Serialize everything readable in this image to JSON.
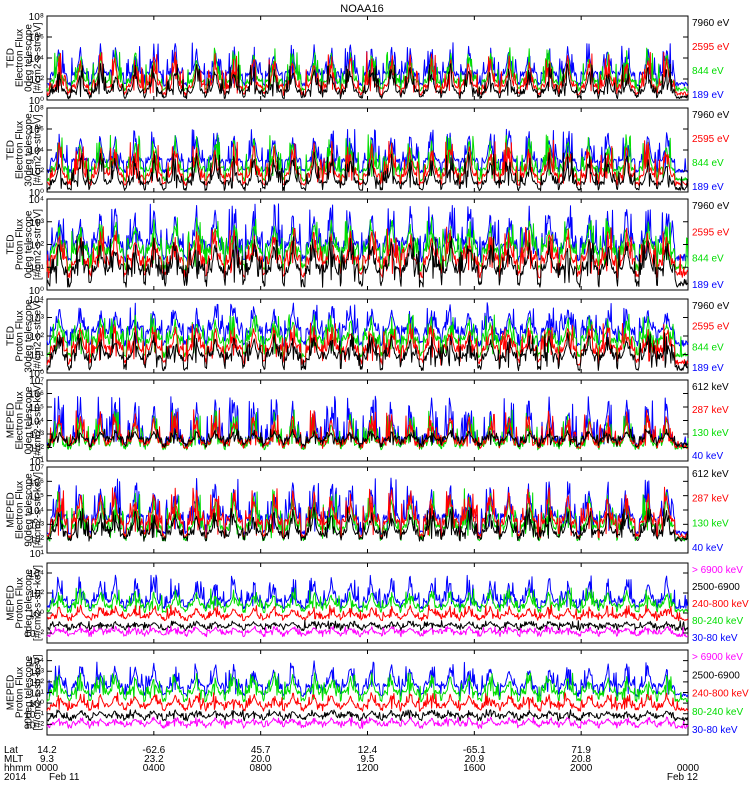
{
  "title": "NOAA16",
  "colors": {
    "blue": "#0000ff",
    "red": "#ff0000",
    "green": "#00dd00",
    "black": "#000000",
    "magenta": "#ff00ff"
  },
  "chart_data": [
    {
      "type": "line",
      "panel": 1,
      "ylabel": [
        "TED",
        "Electron Flux",
        "0deg telescope",
        "[#/cm2-s-str-eV]"
      ],
      "ylim_exp": [
        0,
        8
      ],
      "ytick_exps": [
        0,
        2,
        4,
        6,
        8
      ],
      "legend": [
        {
          "label": "7960 eV",
          "color": "black"
        },
        {
          "label": "2595 eV",
          "color": "red"
        },
        {
          "label": "844 eV",
          "color": "green"
        },
        {
          "label": "189 eV",
          "color": "blue"
        }
      ],
      "series_levels_exp": {
        "blue": {
          "base": 1.5,
          "plateau": 2.5,
          "peak": 5.5
        },
        "green": {
          "base": 1.0,
          "plateau": 1.8,
          "peak": 5.0
        },
        "red": {
          "base": 0.6,
          "plateau": 1.3,
          "peak": 4.6
        },
        "black": {
          "base": 0.3,
          "plateau": 0.8,
          "peak": 3.5
        }
      }
    },
    {
      "type": "line",
      "panel": 2,
      "ylabel": [
        "TED",
        "Electron Flux",
        "30deg telescope",
        "[#/cm2-s-str-eV]"
      ],
      "ylim_exp": [
        0,
        8
      ],
      "ytick_exps": [
        0,
        2,
        4,
        6,
        8
      ],
      "legend": [
        {
          "label": "7960 eV",
          "color": "black"
        },
        {
          "label": "2595 eV",
          "color": "red"
        },
        {
          "label": "844 eV",
          "color": "green"
        },
        {
          "label": "189 eV",
          "color": "blue"
        }
      ],
      "series_levels_exp": {
        "blue": {
          "base": 2.0,
          "plateau": 3.0,
          "peak": 6.0
        },
        "green": {
          "base": 1.2,
          "plateau": 2.2,
          "peak": 5.5
        },
        "red": {
          "base": 0.8,
          "plateau": 1.6,
          "peak": 5.0
        },
        "black": {
          "base": 0.3,
          "plateau": 0.9,
          "peak": 3.8
        }
      }
    },
    {
      "type": "line",
      "panel": 3,
      "ylabel": [
        "TED",
        "Proton Flux",
        "0deg telescope",
        "[#/cm2-s-str-eV]"
      ],
      "ylim_exp": [
        0,
        4
      ],
      "ytick_exps": [
        0,
        1,
        2,
        3,
        4
      ],
      "legend": [
        {
          "label": "7960 eV",
          "color": "black"
        },
        {
          "label": "2595 eV",
          "color": "red"
        },
        {
          "label": "844 eV",
          "color": "green"
        },
        {
          "label": "189 eV",
          "color": "blue"
        }
      ],
      "series_levels_exp": {
        "blue": {
          "base": 1.4,
          "plateau": 2.0,
          "peak": 3.8
        },
        "green": {
          "base": 1.0,
          "plateau": 1.8,
          "peak": 3.2
        },
        "red": {
          "base": 0.7,
          "plateau": 1.3,
          "peak": 2.8
        },
        "black": {
          "base": 0.3,
          "plateau": 0.9,
          "peak": 2.4
        }
      }
    },
    {
      "type": "line",
      "panel": 4,
      "ylabel": [
        "TED",
        "Proton Flux",
        "30deg telescope",
        "[#/cm2-s-str-eV]"
      ],
      "ylim_exp": [
        0,
        4
      ],
      "ytick_exps": [
        0,
        1,
        2,
        3,
        4
      ],
      "legend": [
        {
          "label": "7960 eV",
          "color": "black"
        },
        {
          "label": "2595 eV",
          "color": "red"
        },
        {
          "label": "844 eV",
          "color": "green"
        },
        {
          "label": "189 eV",
          "color": "blue"
        }
      ],
      "series_levels_exp": {
        "blue": {
          "base": 1.6,
          "plateau": 2.3,
          "peak": 3.8
        },
        "green": {
          "base": 1.0,
          "plateau": 1.8,
          "peak": 3.2
        },
        "red": {
          "base": 0.6,
          "plateau": 1.3,
          "peak": 2.7
        },
        "black": {
          "base": 0.3,
          "plateau": 0.9,
          "peak": 2.2
        }
      }
    },
    {
      "type": "line",
      "panel": 5,
      "ylabel": [
        "MEPED",
        "Electron Flux",
        "0deg telescope",
        "[#/cm2-s-str-keV]"
      ],
      "ylim_exp": [
        1,
        7
      ],
      "ytick_exps": [
        1,
        2,
        3,
        4,
        5,
        6,
        7
      ],
      "legend": [
        {
          "label": "612 keV",
          "color": "black"
        },
        {
          "label": "287 keV",
          "color": "red"
        },
        {
          "label": "130 keV",
          "color": "green"
        },
        {
          "label": "40 keV",
          "color": "blue"
        }
      ],
      "series_levels_exp": {
        "blue": {
          "base": 2.2,
          "plateau": 2.6,
          "peak": 5.8
        },
        "green": {
          "base": 2.0,
          "plateau": 2.3,
          "peak": 4.8
        },
        "red": {
          "base": 2.1,
          "plateau": 2.4,
          "peak": 4.8
        },
        "black": {
          "base": 2.2,
          "plateau": 2.6,
          "peak": 3.4
        }
      }
    },
    {
      "type": "line",
      "panel": 6,
      "ylabel": [
        "MEPED",
        "Electron Flux",
        "90deg telescope",
        "[#/cm2-s-str-keV]"
      ],
      "ylim_exp": [
        1,
        7
      ],
      "ytick_exps": [
        1,
        2,
        3,
        4,
        5,
        6,
        7
      ],
      "legend": [
        {
          "label": "612 keV",
          "color": "black"
        },
        {
          "label": "287 keV",
          "color": "red"
        },
        {
          "label": "130 keV",
          "color": "green"
        },
        {
          "label": "40 keV",
          "color": "blue"
        }
      ],
      "series_levels_exp": {
        "blue": {
          "base": 2.4,
          "plateau": 3.5,
          "peak": 6.3
        },
        "green": {
          "base": 2.0,
          "plateau": 2.8,
          "peak": 5.5
        },
        "red": {
          "base": 2.2,
          "plateau": 3.2,
          "peak": 5.6
        },
        "black": {
          "base": 2.0,
          "plateau": 2.4,
          "peak": 4.2
        }
      }
    },
    {
      "type": "line",
      "panel": 7,
      "ylabel": [
        "MEPED",
        "Proton Flux",
        "0deg telescope",
        "[#/cm2-s-str-keV]"
      ],
      "ylim_exp": [
        -3,
        5
      ],
      "ytick_exps": [
        -2,
        0,
        2,
        4
      ],
      "legend": [
        {
          "label": "> 6900 keV",
          "color": "magenta"
        },
        {
          "label": "2500-6900",
          "color": "black"
        },
        {
          "label": "240-800 keV",
          "color": "red"
        },
        {
          "label": "80-240 keV",
          "color": "green"
        },
        {
          "label": "30-80 keV",
          "color": "blue"
        }
      ],
      "series_levels_exp": {
        "blue": {
          "base": 0.6,
          "plateau": 1.2,
          "peak": 3.8
        },
        "green": {
          "base": 0.2,
          "plateau": 0.7,
          "peak": 2.5
        },
        "red": {
          "base": -0.6,
          "plateau": -0.3,
          "peak": 0.8
        },
        "black": {
          "base": -1.6,
          "plateau": -1.3,
          "peak": -0.8
        },
        "magenta": {
          "base": -2.2,
          "plateau": -1.9,
          "peak": -1.3
        }
      }
    },
    {
      "type": "line",
      "panel": 8,
      "ylabel": [
        "MEPED",
        "Proton Flux",
        "90deg telescope",
        "[#/cm2-s-str-keV]"
      ],
      "ylim_exp": [
        -3,
        5
      ],
      "ytick_exps": [
        -2,
        -1,
        0,
        1,
        2,
        3,
        4
      ],
      "legend": [
        {
          "label": "> 6900 keV",
          "color": "magenta"
        },
        {
          "label": "2500-6900",
          "color": "black"
        },
        {
          "label": "240-800 keV",
          "color": "red"
        },
        {
          "label": "80-240 keV",
          "color": "green"
        },
        {
          "label": "30-80 keV",
          "color": "blue"
        }
      ],
      "series_levels_exp": {
        "blue": {
          "base": 0.8,
          "plateau": 1.6,
          "peak": 4.0
        },
        "green": {
          "base": 0.3,
          "plateau": 1.0,
          "peak": 2.9
        },
        "red": {
          "base": -0.6,
          "plateau": -0.2,
          "peak": 1.0
        },
        "black": {
          "base": -1.5,
          "plateau": -1.2,
          "peak": -0.6
        },
        "magenta": {
          "base": -2.2,
          "plateau": -1.9,
          "peak": -1.3
        }
      }
    }
  ],
  "x_axis": {
    "range_hours": [
      0,
      24
    ],
    "row_labels": [
      "Lat",
      "MLT",
      "hhmm",
      "2014"
    ],
    "ticks": [
      {
        "hour": 0,
        "lat": "14.2",
        "mlt": "9.3",
        "hhmm": "0000",
        "date": "Feb 11"
      },
      {
        "hour": 4,
        "lat": "-62.6",
        "mlt": "23.2",
        "hhmm": "0400",
        "date": ""
      },
      {
        "hour": 8,
        "lat": "45.7",
        "mlt": "20.0",
        "hhmm": "0800",
        "date": ""
      },
      {
        "hour": 12,
        "lat": "12.4",
        "mlt": "9.5",
        "hhmm": "1200",
        "date": ""
      },
      {
        "hour": 16,
        "lat": "-65.1",
        "mlt": "20.9",
        "hhmm": "1600",
        "date": ""
      },
      {
        "hour": 20,
        "lat": "71.9",
        "mlt": "20.8",
        "hhmm": "2000",
        "date": ""
      },
      {
        "hour": 24,
        "lat": "",
        "mlt": "",
        "hhmm": "0000",
        "date": "Feb 12"
      }
    ],
    "pass_hours": [
      0.45,
      1.25,
      2.0,
      2.55,
      3.3,
      4.0,
      4.8,
      5.6,
      6.3,
      7.0,
      7.75,
      8.5,
      9.2,
      10.0,
      10.65,
      11.35,
      12.15,
      12.9,
      13.6,
      14.4,
      15.1,
      15.8,
      16.6,
      17.3,
      18.05,
      18.8,
      19.5,
      20.3,
      21.0,
      21.7,
      22.5,
      23.2
    ]
  }
}
